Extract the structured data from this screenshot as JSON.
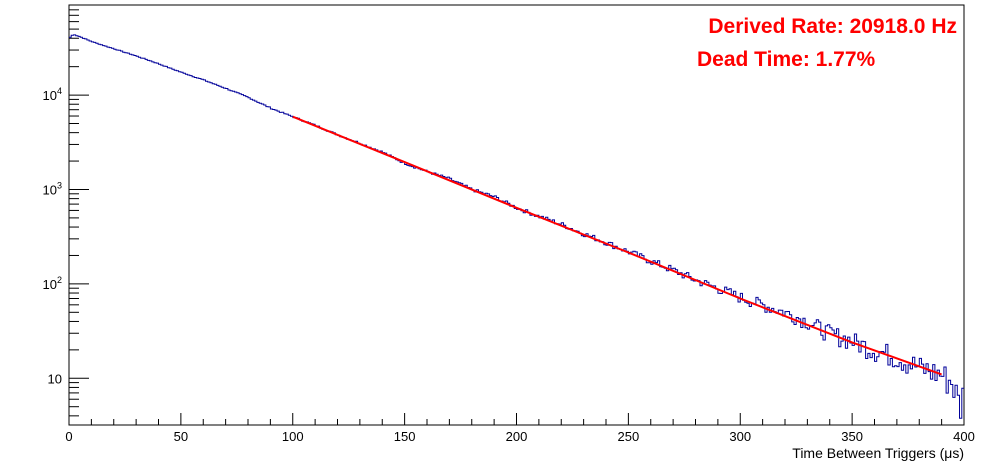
{
  "chart_data": {
    "type": "line",
    "title": "",
    "xlabel": "Time Between Triggers (μs)",
    "ylabel": "",
    "xlim": [
      0,
      400
    ],
    "ylim": [
      3.2,
      90000
    ],
    "yscale": "log",
    "grid": false,
    "legend": "none",
    "x_tick_labels": [
      "0",
      "50",
      "100",
      "150",
      "200",
      "250",
      "300",
      "350",
      "400"
    ],
    "y_tick_labels": [
      {
        "value": 10,
        "label": "10"
      },
      {
        "value": 100,
        "label": "10",
        "exp": "2"
      },
      {
        "value": 1000,
        "label": "10",
        "exp": "3"
      },
      {
        "value": 10000,
        "label": "10",
        "exp": "4"
      }
    ],
    "annotations": [
      {
        "text": "Derived Rate: 20918.0 Hz",
        "position": "top-right",
        "color": "#ff0000"
      },
      {
        "text": "Dead Time: 1.77%",
        "position": "top-right",
        "color": "#ff0000"
      }
    ],
    "series": [
      {
        "kind": "histogram",
        "color": "#000099",
        "x": [
          0,
          2,
          5,
          10,
          20,
          30,
          40,
          50,
          60,
          70,
          80,
          90,
          100,
          110,
          120,
          130,
          140,
          150,
          160,
          170,
          180,
          190,
          200,
          210,
          220,
          230,
          240,
          250,
          260,
          270,
          280,
          290,
          300,
          310,
          320,
          330,
          340,
          350,
          360,
          370,
          380,
          390,
          395,
          398,
          400
        ],
        "y": [
          40000,
          44000,
          41500,
          37000,
          31000,
          26000,
          21500,
          17500,
          14500,
          11800,
          9500,
          7300,
          5900,
          4800,
          3800,
          3100,
          2500,
          1900,
          1550,
          1300,
          1000,
          840,
          640,
          520,
          430,
          340,
          275,
          220,
          175,
          140,
          110,
          90,
          72,
          60,
          50,
          40,
          30,
          25,
          20,
          17,
          13,
          11,
          9,
          5,
          7
        ]
      },
      {
        "kind": "fit",
        "color": "#ff0000",
        "x": [
          100,
          150,
          200,
          250,
          300,
          350,
          390
        ],
        "y": [
          5900,
          1950,
          640,
          215,
          70,
          24,
          11
        ]
      }
    ]
  }
}
